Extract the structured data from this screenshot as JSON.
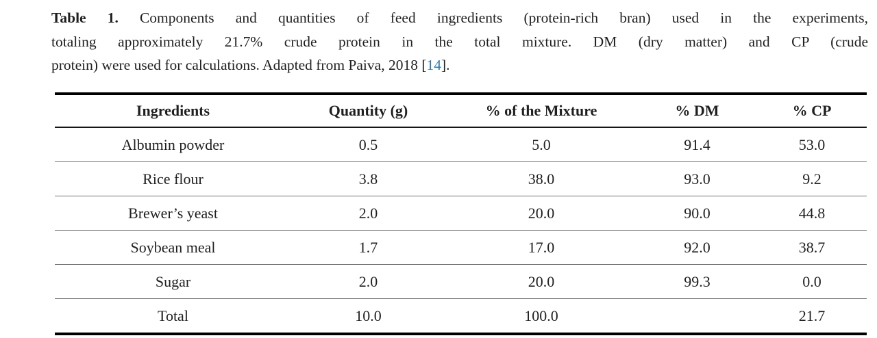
{
  "caption": {
    "line1_label": "Table 1.",
    "line1_rest": " Components and quantities of feed ingredients (protein-rich bran) used in the experiments,",
    "line2": "totaling approximately 21.7% crude protein in the total mixture. DM (dry matter) and CP (crude",
    "line3_pre": "protein) were used for calculations. Adapted from Paiva, 2018 [",
    "citation": "14",
    "line3_post": "]."
  },
  "table": {
    "columns": [
      "Ingredients",
      "Quantity (g)",
      "% of the Mixture",
      "% DM",
      "% CP"
    ],
    "rows": [
      {
        "ingredient": "Albumin powder",
        "quantity_g": "0.5",
        "pct_mixture": "5.0",
        "pct_dm": "91.4",
        "pct_cp": "53.0"
      },
      {
        "ingredient": "Rice flour",
        "quantity_g": "3.8",
        "pct_mixture": "38.0",
        "pct_dm": "93.0",
        "pct_cp": "9.2"
      },
      {
        "ingredient": "Brewer’s yeast",
        "quantity_g": "2.0",
        "pct_mixture": "20.0",
        "pct_dm": "90.0",
        "pct_cp": "44.8"
      },
      {
        "ingredient": "Soybean meal",
        "quantity_g": "1.7",
        "pct_mixture": "17.0",
        "pct_dm": "92.0",
        "pct_cp": "38.7"
      },
      {
        "ingredient": "Sugar",
        "quantity_g": "2.0",
        "pct_mixture": "20.0",
        "pct_dm": "99.3",
        "pct_cp": "0.0"
      },
      {
        "ingredient": "Total",
        "quantity_g": "10.0",
        "pct_mixture": "100.0",
        "pct_dm": "",
        "pct_cp": "21.7"
      }
    ]
  },
  "colors": {
    "link_blue": "#2d7ab8",
    "text": "#1f1f1f",
    "rule_black": "#000000",
    "row_separator_gray": "#6e6e6e"
  }
}
